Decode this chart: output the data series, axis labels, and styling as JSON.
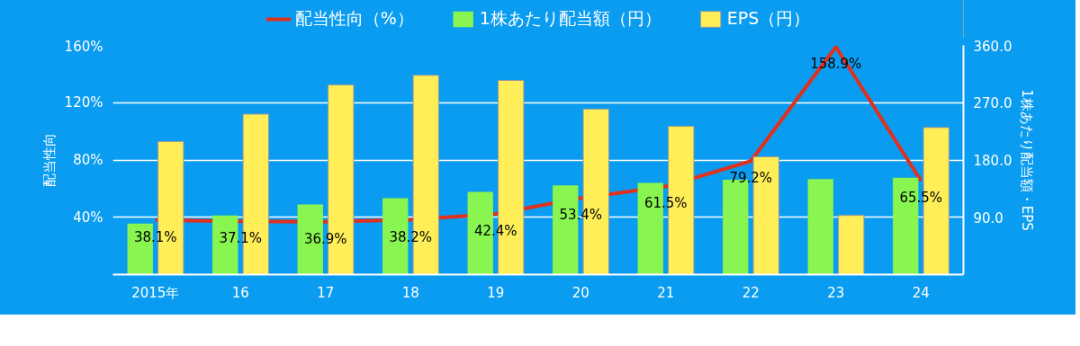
{
  "chart_data": {
    "type": "bar",
    "categories": [
      "2015年",
      "16",
      "17",
      "18",
      "19",
      "20",
      "21",
      "22",
      "23",
      "24"
    ],
    "ylabel": "配当性向",
    "y2label": "1株あたり配当額・EPS",
    "ylim": [
      0,
      160
    ],
    "yticks": [
      {
        "value": 40,
        "label": "40%"
      },
      {
        "value": 80,
        "label": "80%"
      },
      {
        "value": 120,
        "label": "120%"
      },
      {
        "value": 160,
        "label": "160%"
      }
    ],
    "y2lim": [
      0,
      360
    ],
    "y2ticks": [
      {
        "value": 90,
        "label": "90.0"
      },
      {
        "value": 180,
        "label": "180.0"
      },
      {
        "value": 270,
        "label": "270.0"
      },
      {
        "value": 360,
        "label": "360.0"
      }
    ],
    "grid": "y",
    "legend": "top",
    "series": [
      {
        "name": "配当性向（%）",
        "type": "line",
        "color": "#e0301e",
        "values": [
          38.1,
          37.1,
          36.9,
          38.2,
          42.4,
          53.4,
          61.5,
          79.2,
          158.9,
          65.5
        ],
        "value_labels": [
          "38.1%",
          "37.1%",
          "36.9%",
          "38.2%",
          "42.4%",
          "53.4%",
          "61.5%",
          "79.2%",
          "158.9%",
          "65.5%"
        ]
      },
      {
        "name": "1株あたり配当額（円）",
        "type": "bar",
        "axis": "y2",
        "color": "#88f550",
        "values": [
          80,
          93,
          110,
          120,
          130,
          140,
          144,
          149,
          150,
          152
        ]
      },
      {
        "name": "EPS（円）",
        "type": "bar",
        "axis": "y2",
        "color": "#ffee58",
        "values": [
          209,
          252,
          298,
          313,
          305,
          260,
          233,
          185,
          93,
          231
        ]
      }
    ]
  }
}
